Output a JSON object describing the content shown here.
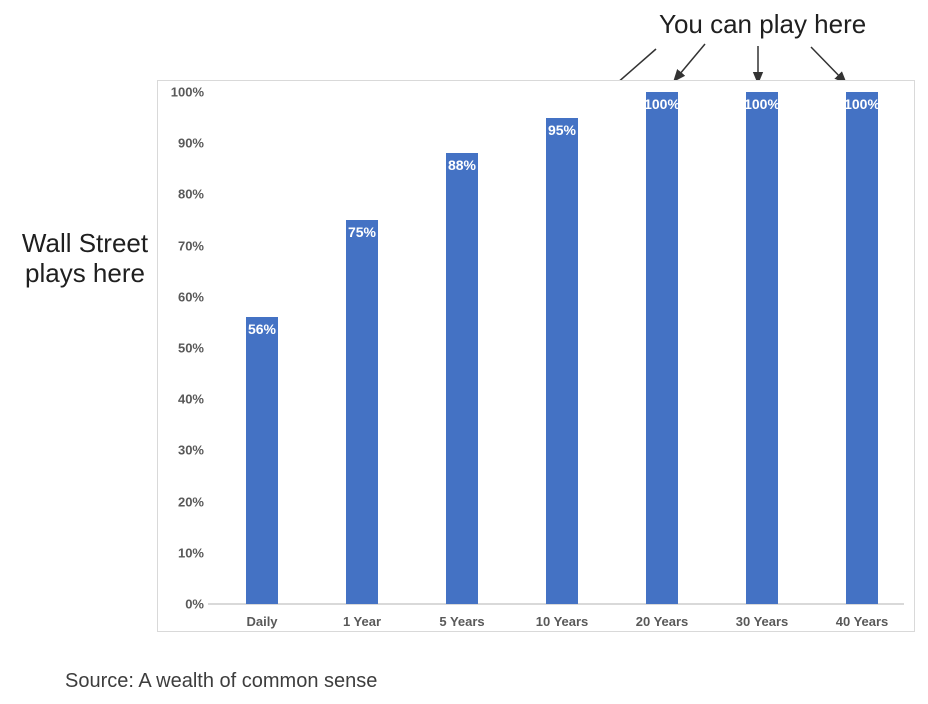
{
  "annotations": {
    "top": "You can play here",
    "left": "Wall Street plays here"
  },
  "source_note": "Source: A wealth of common sense",
  "colors": {
    "bar": "#4472C4",
    "bar_label": "#ffffff",
    "axis_text": "#595959",
    "frame_border": "#d9d9d9",
    "baseline": "#d9d9d9",
    "annotation_text": "#1f1f1f",
    "arrow": "#333333",
    "source_text": "#3d3d3d"
  },
  "chart_data": {
    "type": "bar",
    "title": "",
    "xlabel": "",
    "ylabel": "",
    "categories": [
      "Daily",
      "1 Year",
      "5 Years",
      "10 Years",
      "20 Years",
      "30 Years",
      "40 Years"
    ],
    "values": [
      56,
      75,
      88,
      95,
      100,
      100,
      100
    ],
    "value_labels": [
      "56%",
      "75%",
      "88%",
      "95%",
      "100%",
      "100%",
      "100%"
    ],
    "yticks": [
      "0%",
      "10%",
      "20%",
      "30%",
      "40%",
      "50%",
      "60%",
      "70%",
      "80%",
      "90%",
      "100%"
    ],
    "ylim": [
      0,
      100
    ],
    "grid": "off",
    "legend": "none",
    "bar_color": "#4472C4",
    "annotations_meaning": {
      "wall_street_points_to": "Daily",
      "you_can_play_points_to": [
        "10 Years",
        "20 Years",
        "30 Years",
        "40 Years"
      ]
    }
  }
}
